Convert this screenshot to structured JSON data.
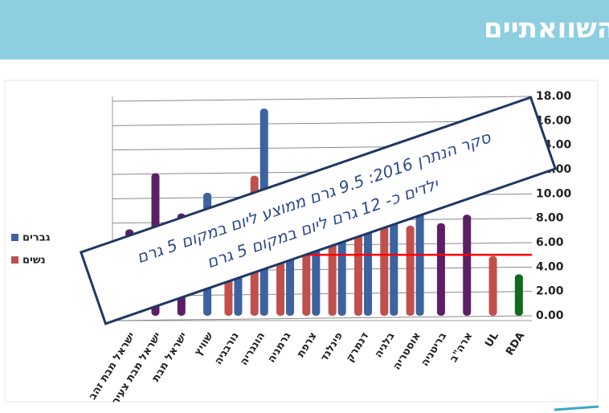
{
  "header": {
    "title": "צריכת מלח- נתונים השוואתיים"
  },
  "chart_data": {
    "type": "bar",
    "categories": [
      "ישראל מבת זהב",
      "ישראל מבת צעיר",
      "ישראל מבת",
      "שוויץ",
      "נורבגיה",
      "הונגריה",
      "גרמניה",
      "צרפת",
      "פינלנד",
      "דנמרק",
      "בלגיה",
      "אוסטריה",
      "בריטניה",
      "ארה\"ב",
      "UL",
      "RDA"
    ],
    "series": [
      {
        "name": "גברים",
        "color": "#3c62a0",
        "values": [
          null,
          null,
          null,
          10.1,
          8.5,
          17.0,
          6.0,
          7.0,
          7.0,
          8.0,
          8.6,
          8.4,
          null,
          null,
          null,
          null
        ]
      },
      {
        "name": "נשים",
        "color": "#c0504d",
        "values": [
          null,
          null,
          null,
          null,
          5.5,
          11.5,
          5.5,
          6.5,
          6.4,
          6.9,
          8.1,
          7.4,
          null,
          null,
          null,
          null
        ]
      },
      {
        "colors": [
          "#5c1f66",
          "#5c1f66",
          "#5c1f66",
          null,
          null,
          null,
          null,
          null,
          null,
          null,
          null,
          null,
          "#5c1f66",
          "#5c1f66",
          "#c0504d",
          "#0f6b1e"
        ],
        "values": [
          7.1,
          11.7,
          8.4,
          null,
          null,
          null,
          null,
          null,
          null,
          null,
          null,
          null,
          7.6,
          8.3,
          4.9,
          3.4
        ]
      }
    ],
    "reference_line": {
      "value": 5,
      "color": "#ff0000"
    },
    "ylim": [
      0,
      18
    ],
    "yticks": [
      {
        "value": 0,
        "label": "0.00"
      },
      {
        "value": 2,
        "label": "2.00"
      },
      {
        "value": 4,
        "label": "4.00"
      },
      {
        "value": 6,
        "label": "6.00"
      },
      {
        "value": 8,
        "label": "8.00"
      },
      {
        "value": 10,
        "label": "10.00"
      },
      {
        "value": 12,
        "label": "12.00"
      },
      {
        "value": 14,
        "label": "14.00"
      },
      {
        "value": 16,
        "label": "16.00"
      },
      {
        "value": 18,
        "label": "18.00"
      }
    ],
    "grid": true,
    "legend": "left",
    "annotation": {
      "lines": [
        "סקר הנתרן 2016: 9.5 גרם ממוצע ליום במקום 5 גרם",
        "ילדים כ- 12 גרם ליום במקום 5 גרם"
      ]
    }
  }
}
